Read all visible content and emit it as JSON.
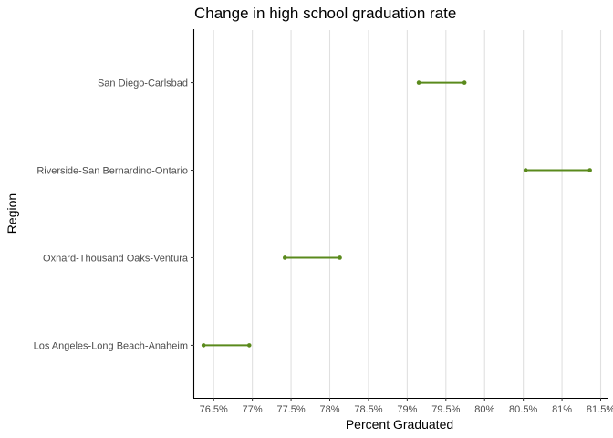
{
  "chart_data": {
    "type": "dumbbell",
    "title": "Change in high school graduation rate",
    "xlabel": "Percent Graduated",
    "ylabel": "Region",
    "xlim": [
      76.25,
      81.6
    ],
    "x_ticks": [
      76.5,
      77,
      77.5,
      78,
      78.5,
      79,
      79.5,
      80,
      80.5,
      81,
      81.5
    ],
    "x_tick_labels": [
      "76.5%",
      "77%",
      "77.5%",
      "78%",
      "78.5%",
      "79%",
      "79.5%",
      "80%",
      "80.5%",
      "81%",
      "81.5%"
    ],
    "categories": [
      "Los Angeles-Long Beach-Anaheim",
      "Oxnard-Thousand Oaks-Ventura",
      "Riverside-San Bernardino-Ontario",
      "San Diego-Carlsbad"
    ],
    "start_values": [
      76.37,
      77.42,
      80.53,
      79.15
    ],
    "end_values": [
      76.96,
      78.13,
      81.36,
      79.74
    ],
    "grid": "vertical-major",
    "legend": "none",
    "color": "#5a8a1c"
  }
}
